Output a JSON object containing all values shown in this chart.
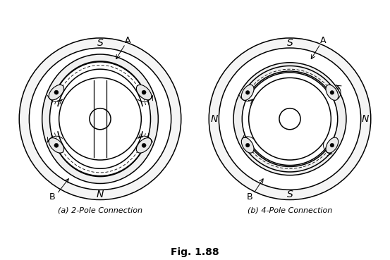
{
  "title": "Fig. 1.88",
  "caption_a": "(a) 2-Pole Connection",
  "caption_b": "(b) 4-Pole Connection",
  "bg_color": "#ffffff",
  "line_color": "#000000",
  "fig_width": 5.53,
  "fig_height": 3.69,
  "dpi": 100
}
